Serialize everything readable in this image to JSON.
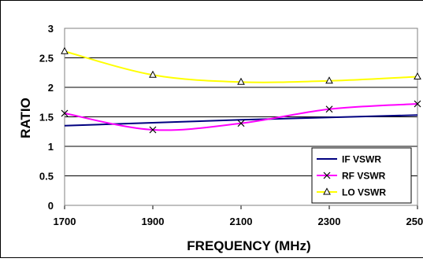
{
  "chart_data": {
    "type": "line",
    "title": "",
    "xlabel": "FREQUENCY (MHz)",
    "ylabel": "RATIO",
    "x_ticks": [
      "1700",
      "1900",
      "2100",
      "2300",
      "2500"
    ],
    "xlim": [
      1700,
      2500
    ],
    "y_ticks": [
      "0",
      "0.5",
      "1",
      "1.5",
      "2",
      "2.5",
      "3"
    ],
    "ylim": [
      0,
      3
    ],
    "grid": "horizontal",
    "legend_position": "bottom-right",
    "series": [
      {
        "name": "IF VSWR",
        "color": "#000080",
        "marker": "none",
        "x": [
          1700,
          1900,
          2100,
          2300,
          2500
        ],
        "y": [
          1.35,
          1.4,
          1.45,
          1.49,
          1.53
        ]
      },
      {
        "name": "RF VSWR",
        "color": "#ff00ff",
        "marker": "x",
        "x": [
          1700,
          1900,
          2100,
          2300,
          2500
        ],
        "y": [
          1.56,
          1.28,
          1.39,
          1.63,
          1.72
        ]
      },
      {
        "name": "LO VSWR",
        "color": "#ffff00",
        "marker": "triangle",
        "x": [
          1700,
          1900,
          2100,
          2300,
          2500
        ],
        "y": [
          2.61,
          2.21,
          2.09,
          2.11,
          2.18
        ]
      }
    ]
  }
}
